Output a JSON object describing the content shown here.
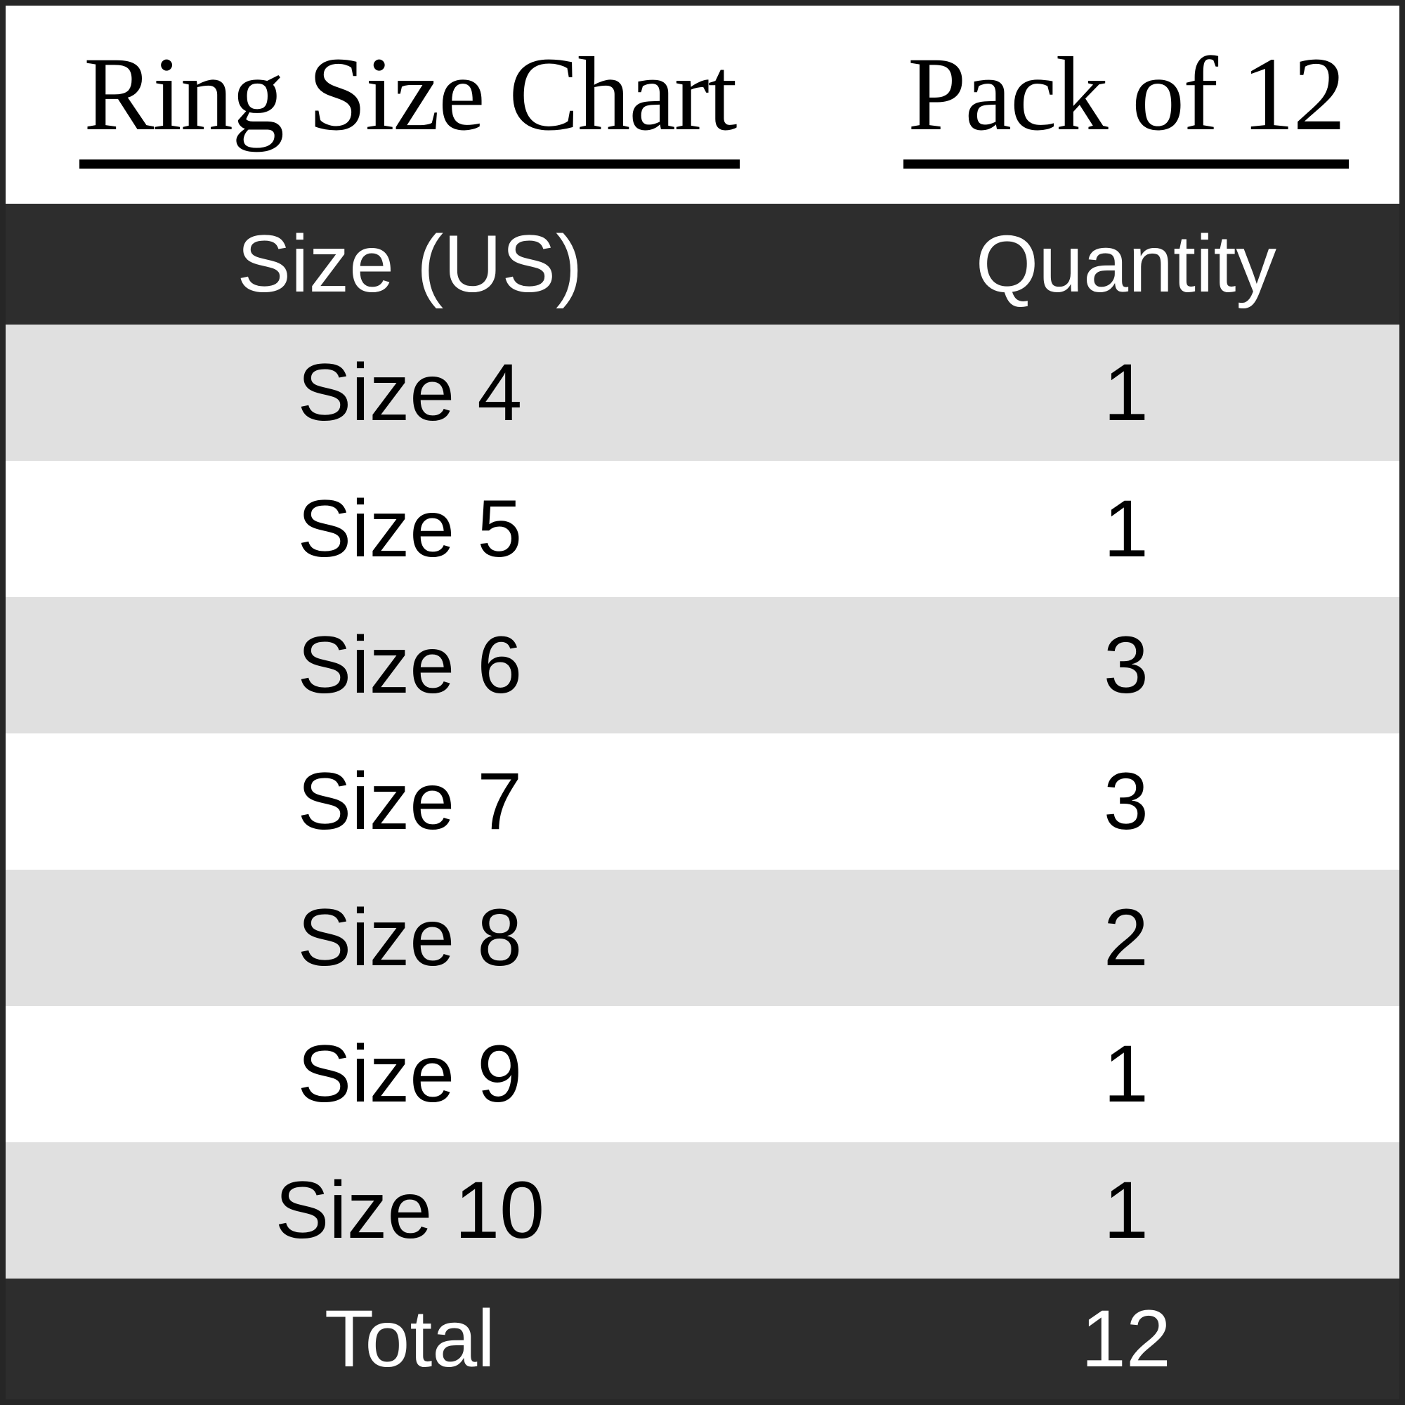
{
  "titles": {
    "left": "Ring Size Chart",
    "right": "Pack of 12"
  },
  "table": {
    "header": {
      "size": "Size (US)",
      "quantity": "Quantity"
    },
    "rows": [
      {
        "size": "Size 4",
        "quantity": "1"
      },
      {
        "size": "Size 5",
        "quantity": "1"
      },
      {
        "size": "Size 6",
        "quantity": "3"
      },
      {
        "size": "Size 7",
        "quantity": "3"
      },
      {
        "size": "Size 8",
        "quantity": "2"
      },
      {
        "size": "Size 9",
        "quantity": "1"
      },
      {
        "size": "Size 10",
        "quantity": "1"
      }
    ],
    "total": {
      "label": "Total",
      "value": "12"
    }
  },
  "colors": {
    "header_bg": "#2d2d2d",
    "row_bg": "#ffffff",
    "row_alt_bg": "#e0e0e0",
    "text_dark": "#000000",
    "text_light": "#ffffff",
    "border_color": "#262626"
  },
  "chart_data": {
    "type": "table",
    "title": "Ring Size Chart",
    "subtitle": "Pack of 12",
    "columns": [
      "Size (US)",
      "Quantity"
    ],
    "categories": [
      "Size 4",
      "Size 5",
      "Size 6",
      "Size 7",
      "Size 8",
      "Size 9",
      "Size 10"
    ],
    "values": [
      1,
      1,
      3,
      3,
      2,
      1,
      1
    ],
    "total_label": "Total",
    "total_value": 12
  }
}
